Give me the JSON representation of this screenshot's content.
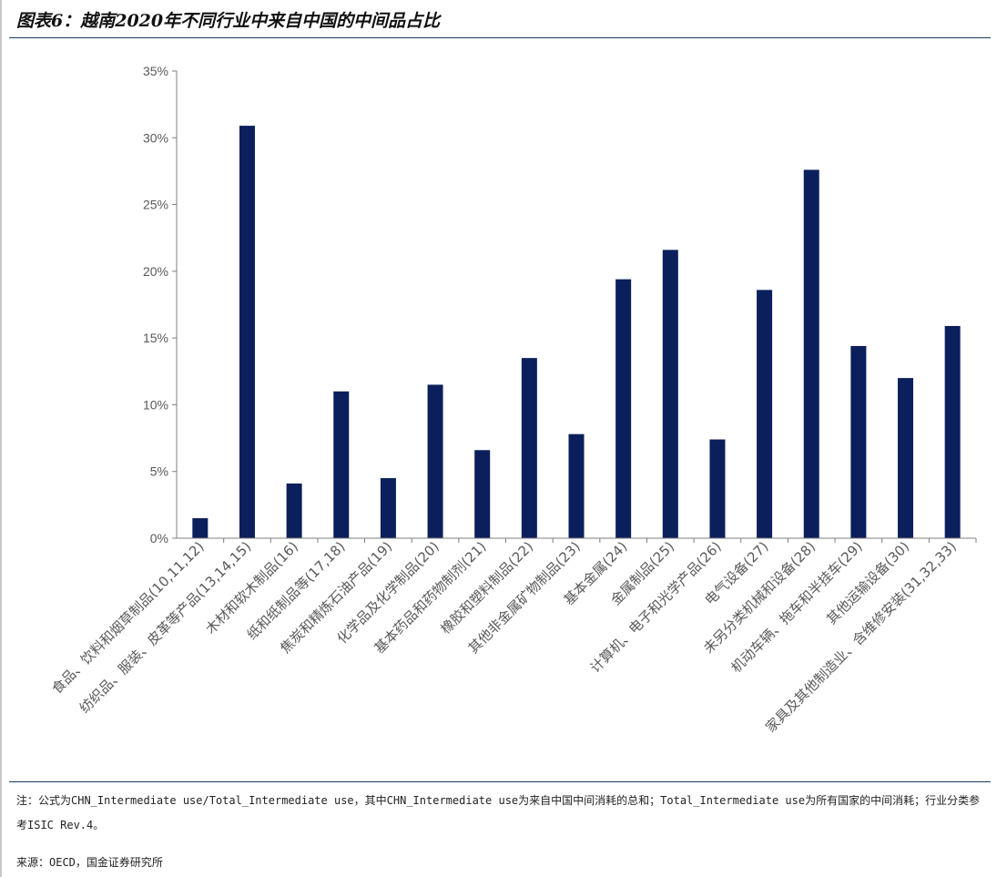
{
  "figure": {
    "title": "图表6：越南2020年不同行业中来自中国的中间品占比"
  },
  "chart_data": {
    "type": "bar",
    "title": "",
    "xlabel": "",
    "ylabel": "",
    "ylim": [
      0,
      35
    ],
    "yticks": [
      "0%",
      "5%",
      "10%",
      "15%",
      "20%",
      "25%",
      "30%",
      "35%"
    ],
    "ytick_values": [
      0,
      5,
      10,
      15,
      20,
      25,
      30,
      35
    ],
    "bar_color": "#0b1f5c",
    "categories": [
      "食品、饮料和烟草制品(10,11,12)",
      "纺织品、服装、皮革等产品(13,14,15)",
      "木材和软木制品(16)",
      "纸和纸制品等(17,18)",
      "焦炭和精炼石油产品(19)",
      "化学品及化学制品(20)",
      "基本药品和药物制剂(21)",
      "橡胶和塑料制品(22)",
      "其他非金属矿物制品(23)",
      "基本金属(24)",
      "金属制品(25)",
      "计算机、电子和光学产品(26)",
      "电气设备(27)",
      "未另分类机械和设备(28)",
      "机动车辆、拖车和半挂车(29)",
      "其他运输设备(30)",
      "家具及其他制造业、含维修安装(31,32,33)"
    ],
    "values": [
      1.5,
      30.9,
      4.1,
      11.0,
      4.5,
      11.5,
      6.6,
      13.5,
      7.8,
      19.4,
      21.6,
      7.4,
      18.6,
      27.6,
      14.4,
      12.0,
      15.9
    ]
  },
  "footer": {
    "note": "注：公式为CHN_Intermediate use/Total_Intermediate use，其中CHN_Intermediate use为来自中国中间消耗的总和；Total_Intermediate use为所有国家的中间消耗；行业分类参考ISIC Rev.4。",
    "source": "来源：OECD，国金证券研究所"
  }
}
